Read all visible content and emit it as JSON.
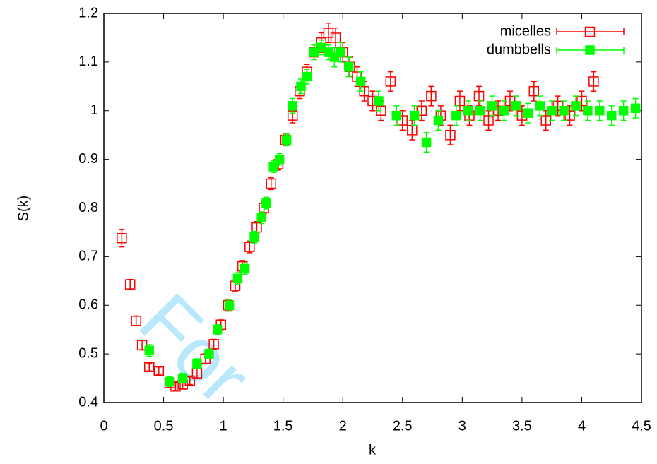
{
  "chart_data": {
    "type": "scatter",
    "x_label": "k",
    "y_label": "S(k)",
    "watermark": "For",
    "xlim": [
      0,
      4.5
    ],
    "ylim": [
      0.4,
      1.2
    ],
    "xticks": [
      0,
      0.5,
      1,
      1.5,
      2,
      2.5,
      3,
      3.5,
      4,
      4.5
    ],
    "yticks": [
      0.4,
      0.5,
      0.6,
      0.7,
      0.8,
      0.9,
      1,
      1.1,
      1.2
    ],
    "legend": "top-right",
    "series": [
      {
        "name": "micelles",
        "color": "#ff0000",
        "marker": "open-square",
        "x": [
          0.15,
          0.22,
          0.27,
          0.32,
          0.38,
          0.46,
          0.55,
          0.6,
          0.66,
          0.72,
          0.78,
          0.85,
          0.92,
          0.98,
          1.04,
          1.1,
          1.16,
          1.22,
          1.28,
          1.34,
          1.4,
          1.46,
          1.52,
          1.58,
          1.64,
          1.7,
          1.76,
          1.82,
          1.88,
          1.94,
          2.0,
          2.06,
          2.12,
          2.18,
          2.25,
          2.32,
          2.4,
          2.5,
          2.58,
          2.66,
          2.74,
          2.82,
          2.9,
          2.98,
          3.06,
          3.14,
          3.22,
          3.3,
          3.4,
          3.5,
          3.6,
          3.7,
          3.8,
          3.9,
          4.0,
          4.1
        ],
        "values": [
          0.738,
          0.643,
          0.568,
          0.518,
          0.473,
          0.465,
          0.44,
          0.433,
          0.437,
          0.445,
          0.46,
          0.49,
          0.52,
          0.56,
          0.6,
          0.64,
          0.68,
          0.72,
          0.76,
          0.8,
          0.85,
          0.89,
          0.94,
          0.99,
          1.04,
          1.08,
          1.12,
          1.14,
          1.16,
          1.15,
          1.12,
          1.09,
          1.07,
          1.04,
          1.02,
          1.0,
          1.06,
          0.98,
          0.96,
          1.0,
          1.03,
          0.99,
          0.95,
          1.02,
          0.99,
          1.03,
          0.98,
          1.0,
          1.02,
          0.99,
          1.04,
          0.98,
          1.01,
          0.99,
          1.02,
          1.06
        ],
        "errors": [
          0.018,
          0.01,
          0.01,
          0.01,
          0.008,
          0.008,
          0.008,
          0.008,
          0.008,
          0.008,
          0.01,
          0.01,
          0.01,
          0.01,
          0.012,
          0.012,
          0.012,
          0.012,
          0.012,
          0.012,
          0.012,
          0.012,
          0.012,
          0.015,
          0.015,
          0.015,
          0.015,
          0.02,
          0.02,
          0.02,
          0.02,
          0.02,
          0.02,
          0.02,
          0.02,
          0.02,
          0.02,
          0.02,
          0.02,
          0.02,
          0.02,
          0.02,
          0.02,
          0.02,
          0.02,
          0.02,
          0.02,
          0.02,
          0.02,
          0.02,
          0.02,
          0.02,
          0.02,
          0.02,
          0.02,
          0.02
        ]
      },
      {
        "name": "dumbbells",
        "color": "#00ff00",
        "marker": "filled-square",
        "x": [
          0.38,
          0.55,
          0.66,
          0.78,
          0.88,
          0.95,
          1.05,
          1.12,
          1.18,
          1.26,
          1.32,
          1.36,
          1.42,
          1.47,
          1.53,
          1.58,
          1.65,
          1.7,
          1.76,
          1.82,
          1.88,
          1.93,
          1.98,
          2.05,
          2.15,
          2.3,
          2.45,
          2.6,
          2.7,
          2.8,
          2.95,
          3.05,
          3.15,
          3.25,
          3.35,
          3.45,
          3.55,
          3.65,
          3.75,
          3.85,
          3.95,
          4.05,
          4.15,
          4.25,
          4.35,
          4.45
        ],
        "values": [
          0.507,
          0.443,
          0.45,
          0.48,
          0.5,
          0.55,
          0.6,
          0.655,
          0.675,
          0.74,
          0.78,
          0.81,
          0.885,
          0.9,
          0.94,
          1.01,
          1.05,
          1.07,
          1.12,
          1.13,
          1.12,
          1.11,
          1.12,
          1.09,
          1.06,
          1.02,
          0.99,
          0.99,
          0.935,
          0.98,
          0.99,
          1.0,
          1.0,
          1.01,
          1.0,
          1.01,
          0.995,
          1.01,
          1.0,
          1.0,
          1.01,
          1.0,
          1.0,
          0.99,
          1.0,
          1.005
        ],
        "errors": [
          0.012,
          0.01,
          0.01,
          0.01,
          0.01,
          0.01,
          0.012,
          0.012,
          0.012,
          0.012,
          0.012,
          0.012,
          0.012,
          0.012,
          0.012,
          0.015,
          0.015,
          0.015,
          0.015,
          0.015,
          0.015,
          0.02,
          0.02,
          0.02,
          0.02,
          0.02,
          0.02,
          0.02,
          0.02,
          0.02,
          0.02,
          0.02,
          0.02,
          0.02,
          0.02,
          0.02,
          0.02,
          0.02,
          0.02,
          0.02,
          0.02,
          0.02,
          0.02,
          0.02,
          0.02,
          0.02
        ]
      }
    ]
  }
}
